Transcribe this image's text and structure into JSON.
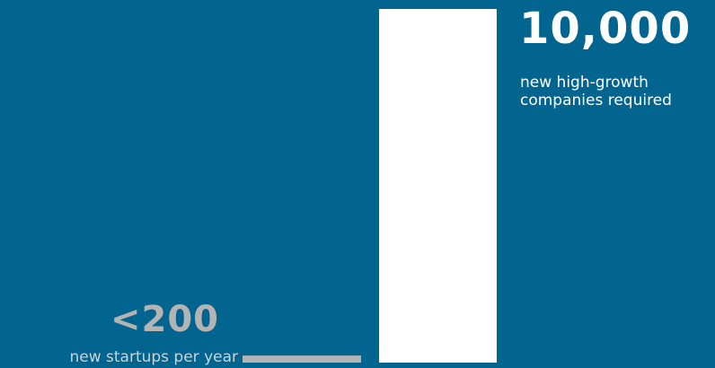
{
  "chart_data": {
    "type": "bar",
    "categories": [
      "new startups per year",
      "new high-growth companies required"
    ],
    "values": [
      200,
      10000
    ],
    "value_labels": [
      "<200",
      "10,000"
    ],
    "captions": [
      "new startups per year",
      "new high-growth companies required"
    ],
    "ylim": [
      0,
      10000
    ],
    "grid": false,
    "colors": {
      "background": "#02658f",
      "bar_small": "#b4b4b4",
      "bar_large": "#ffffff",
      "label_small": "#b4b4b4",
      "label_large": "#ffffff"
    }
  }
}
